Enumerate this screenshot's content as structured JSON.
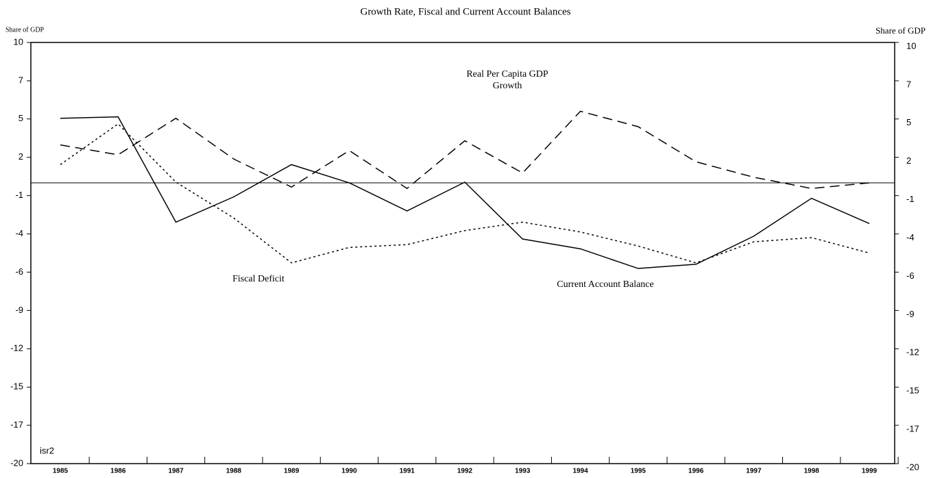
{
  "chart_data": {
    "type": "line",
    "title": "Growth Rate, Fiscal and Current Account Balances",
    "y_label": "Share of GDP",
    "y2_label": "Share of GDP",
    "annotation": "isr2",
    "categories": [
      "1985",
      "1986",
      "1987",
      "1988",
      "1989",
      "1990",
      "1991",
      "1992",
      "1993",
      "1994",
      "1995",
      "1996",
      "1997",
      "1998",
      "1999"
    ],
    "ylim": [
      -20,
      10
    ],
    "yticks": [
      10,
      {
        "value": 7.27,
        "label": "7"
      },
      {
        "value": 4.55,
        "label": "5"
      },
      {
        "value": 1.82,
        "label": "2"
      },
      {
        "value": -0.91,
        "label": "-1"
      },
      {
        "value": -3.64,
        "label": "-4"
      },
      {
        "value": -6.36,
        "label": "-6"
      },
      {
        "value": -9.09,
        "label": "-9"
      },
      {
        "value": -11.82,
        "label": "-12"
      },
      {
        "value": -14.55,
        "label": "-15"
      },
      {
        "value": -17.27,
        "label": "-17"
      },
      -20
    ],
    "y2lim": [
      -20,
      10
    ],
    "y2ticks": [
      10,
      {
        "value": 7.27,
        "label": "7"
      },
      {
        "value": 4.55,
        "label": "5"
      },
      {
        "value": 1.82,
        "label": "2"
      },
      {
        "value": -0.91,
        "label": "-1"
      },
      {
        "value": -3.64,
        "label": "-4"
      },
      {
        "value": -6.36,
        "label": "-6"
      },
      {
        "value": -9.09,
        "label": "-9"
      },
      {
        "value": -11.82,
        "label": "-12"
      },
      {
        "value": -14.55,
        "label": "-15"
      },
      {
        "value": -17.27,
        "label": "-17"
      },
      -20
    ],
    "series": [
      {
        "name": "Current Account Balance",
        "color": "#000000",
        "dash": "solid",
        "values": [
          4.6,
          4.7,
          -2.8,
          -1.0,
          1.3,
          0.0,
          -2.0,
          0.05,
          -4.0,
          -4.7,
          -6.1,
          -5.8,
          -3.8,
          -1.1,
          -2.9
        ]
      },
      {
        "name": "Real Per Capita GDP Growth",
        "color": "#000000",
        "dash": "dashed",
        "values": [
          2.7,
          2.0,
          4.6,
          1.7,
          -0.3,
          2.3,
          -0.4,
          3.0,
          0.7,
          5.1,
          4.0,
          1.5,
          0.4,
          -0.4,
          0.0
        ]
      },
      {
        "name": "Fiscal Deficit",
        "color": "#000000",
        "dash": "dotted",
        "values": [
          1.3,
          4.2,
          0.05,
          -2.5,
          -5.7,
          -4.6,
          -4.4,
          -3.4,
          -2.8,
          -3.5,
          -4.5,
          -5.7,
          -4.2,
          -3.9,
          -5.0
        ]
      }
    ]
  }
}
